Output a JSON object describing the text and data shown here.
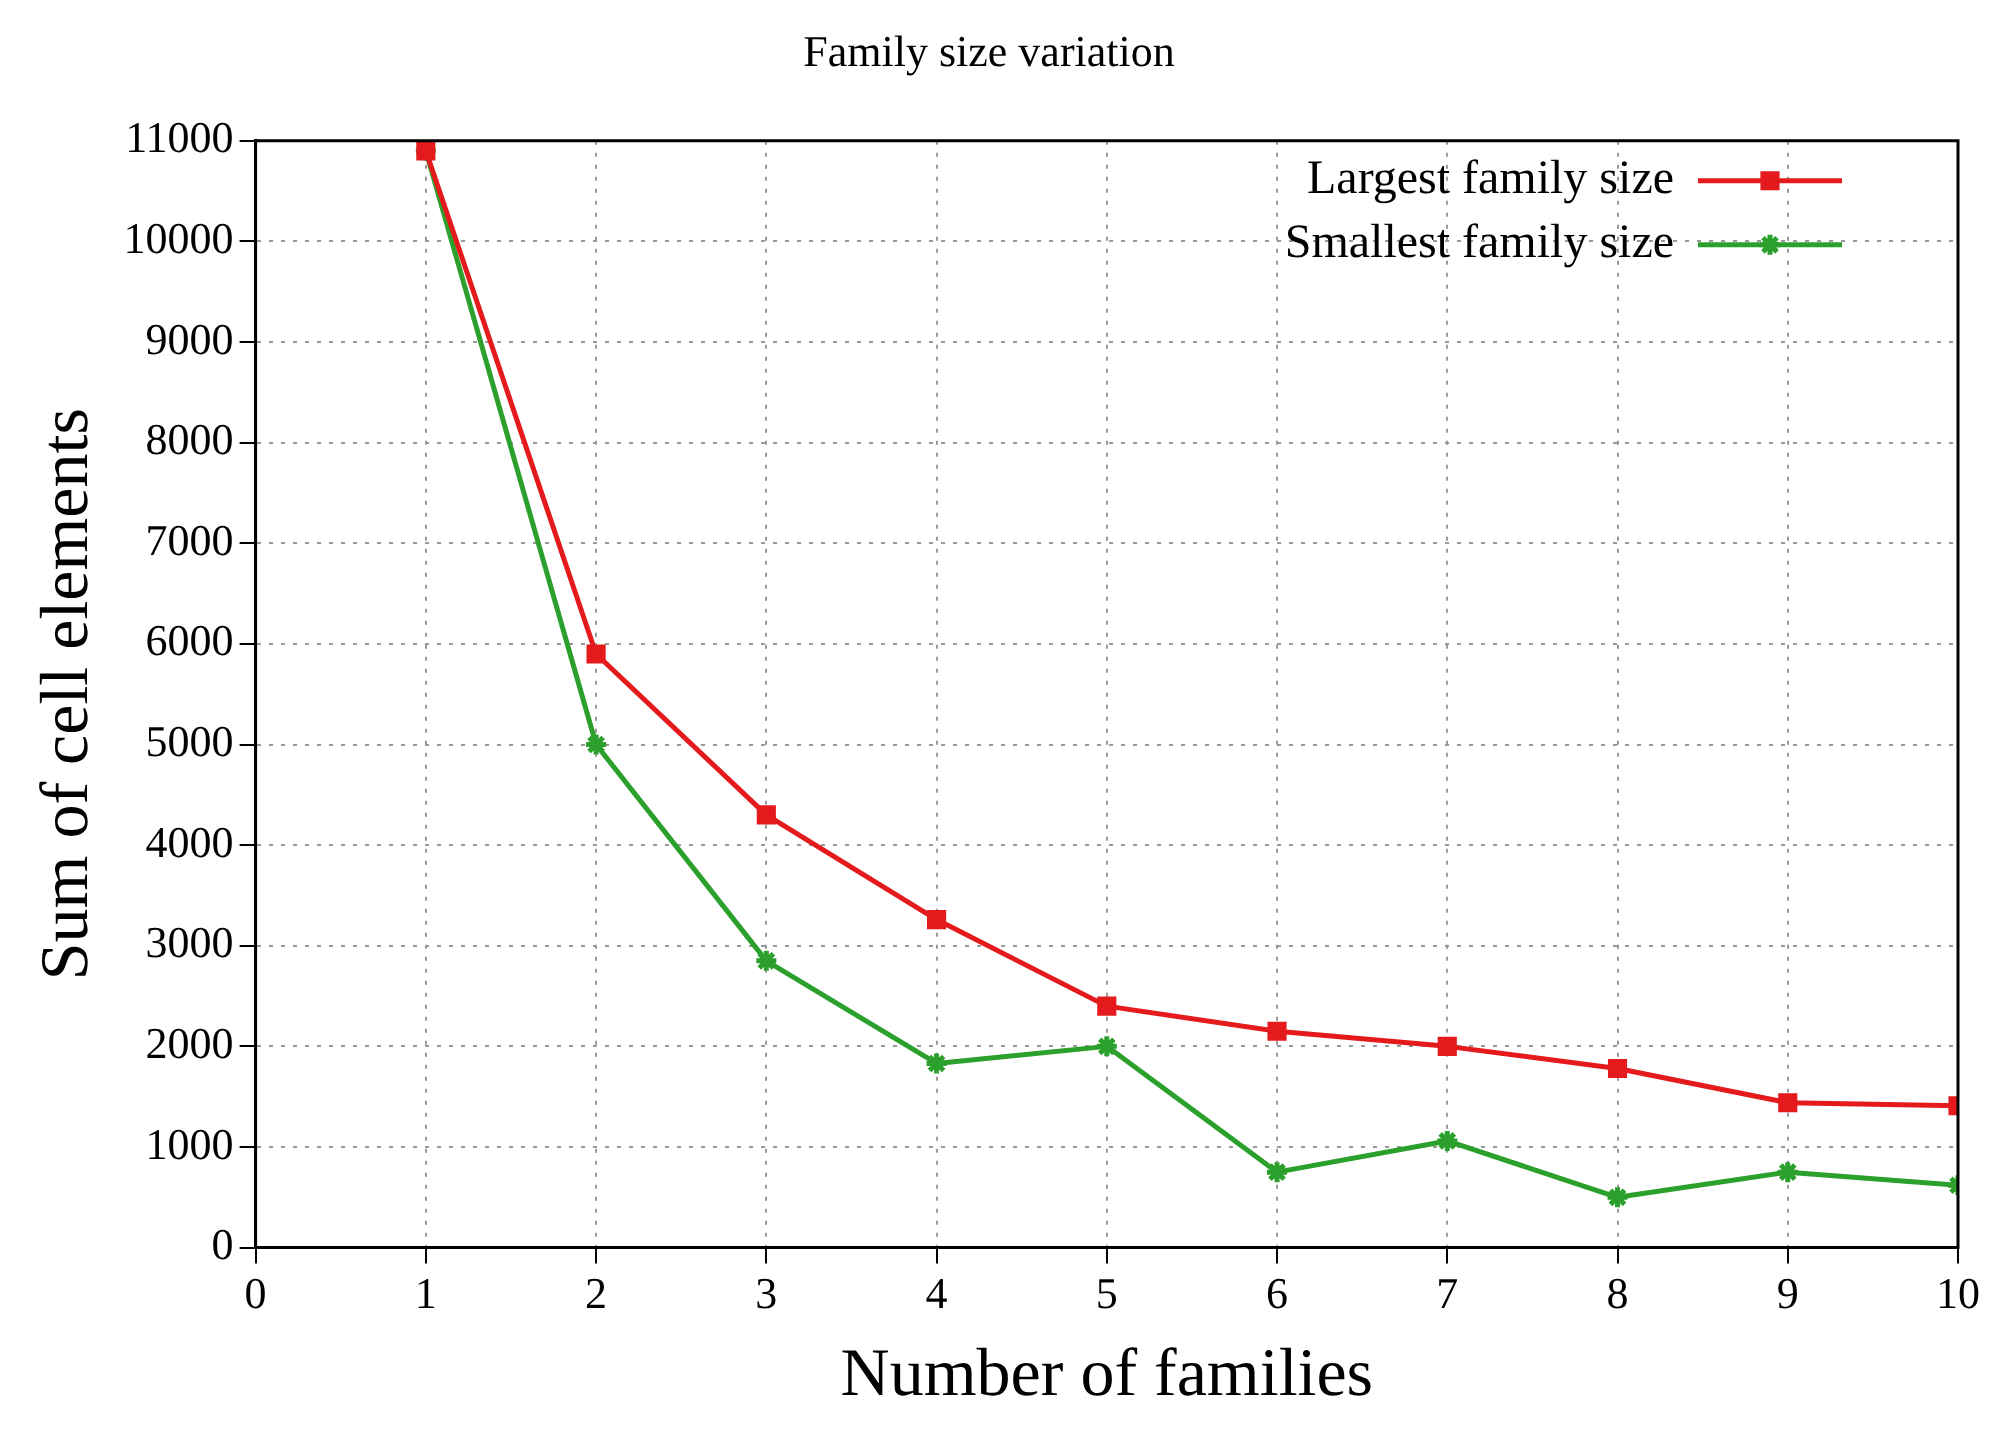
{
  "chart_data": {
    "type": "line",
    "title": "Family size variation",
    "xlabel": "Number of families",
    "ylabel": "Sum of cell elements",
    "x": [
      1,
      2,
      3,
      4,
      5,
      6,
      7,
      8,
      9,
      10
    ],
    "series": [
      {
        "name": "Largest family size",
        "color": "#e41a1c",
        "marker": "square",
        "values": [
          10900,
          5900,
          4300,
          3260,
          2400,
          2150,
          2000,
          1780,
          1440,
          1410
        ]
      },
      {
        "name": "Smallest family size",
        "color": "#2ca02c",
        "marker": "cross",
        "values": [
          10900,
          5000,
          2850,
          1830,
          2000,
          750,
          1060,
          500,
          750,
          620
        ]
      }
    ],
    "xlim": [
      0,
      10
    ],
    "xticks": [
      0,
      1,
      2,
      3,
      4,
      5,
      6,
      7,
      8,
      9,
      10
    ],
    "ylim": [
      0,
      11000
    ],
    "yticks": [
      0,
      1000,
      2000,
      3000,
      4000,
      5000,
      6000,
      7000,
      8000,
      9000,
      10000,
      11000
    ],
    "grid": true,
    "legend": "top right",
    "line_style": "solid"
  }
}
